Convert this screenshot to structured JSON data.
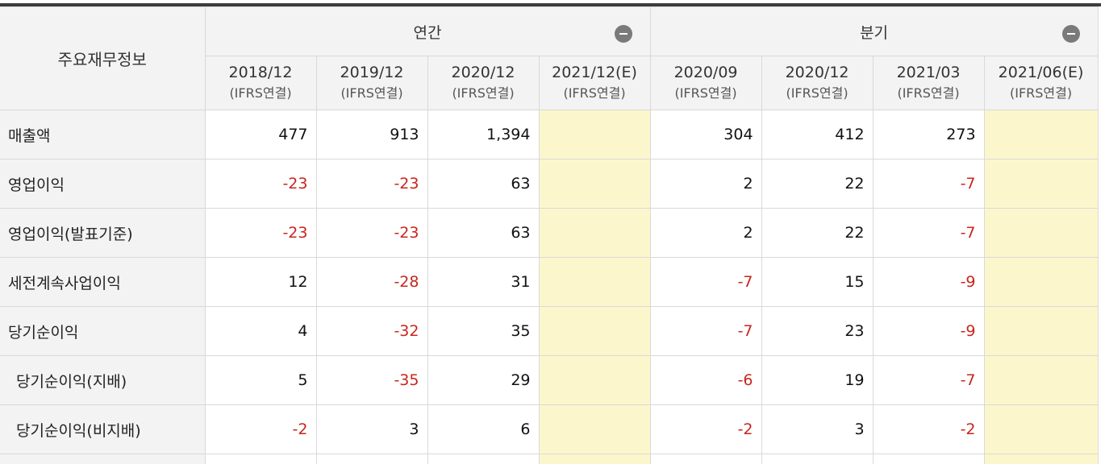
{
  "header": {
    "corner": "주요재무정보",
    "groups": [
      {
        "label": "연간"
      },
      {
        "label": "분기"
      }
    ],
    "periods": [
      {
        "date": "2018/12",
        "basis": "(IFRS연결)"
      },
      {
        "date": "2019/12",
        "basis": "(IFRS연결)"
      },
      {
        "date": "2020/12",
        "basis": "(IFRS연결)"
      },
      {
        "date": "2021/12(E)",
        "basis": "(IFRS연결)"
      },
      {
        "date": "2020/09",
        "basis": "(IFRS연결)"
      },
      {
        "date": "2020/12",
        "basis": "(IFRS연결)"
      },
      {
        "date": "2021/03",
        "basis": "(IFRS연결)"
      },
      {
        "date": "2021/06(E)",
        "basis": "(IFRS연결)"
      }
    ]
  },
  "rows": [
    {
      "label": "매출액",
      "values": [
        "477",
        "913",
        "1,394",
        "",
        "304",
        "412",
        "273",
        ""
      ]
    },
    {
      "label": "영업이익",
      "values": [
        "-23",
        "-23",
        "63",
        "",
        "2",
        "22",
        "-7",
        ""
      ]
    },
    {
      "label": "영업이익(발표기준)",
      "values": [
        "-23",
        "-23",
        "63",
        "",
        "2",
        "22",
        "-7",
        ""
      ]
    },
    {
      "label": "세전계속사업이익",
      "values": [
        "12",
        "-28",
        "31",
        "",
        "-7",
        "15",
        "-9",
        ""
      ]
    },
    {
      "label": "당기순이익",
      "values": [
        "4",
        "-32",
        "35",
        "",
        "-7",
        "23",
        "-9",
        ""
      ]
    },
    {
      "label": "당기순이익(지배)",
      "values": [
        "5",
        "-35",
        "29",
        "",
        "-6",
        "19",
        "-7",
        ""
      ]
    },
    {
      "label": "당기순이익(비지배)",
      "values": [
        "-2",
        "3",
        "6",
        "",
        "-2",
        "3",
        "-2",
        ""
      ]
    }
  ],
  "colors": {
    "negative": "#c8261c",
    "estimate_bg": "#fcf6cd",
    "header_bg": "#f3f3f3",
    "top_bar": "#3c3c3c"
  },
  "icons": {
    "collapse": "minus-circle-icon"
  }
}
